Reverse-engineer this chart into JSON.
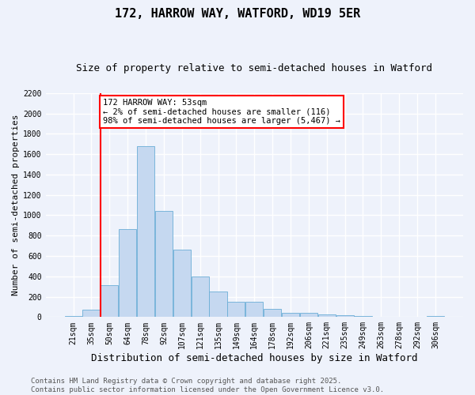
{
  "title": "172, HARROW WAY, WATFORD, WD19 5ER",
  "subtitle": "Size of property relative to semi-detached houses in Watford",
  "xlabel": "Distribution of semi-detached houses by size in Watford",
  "ylabel": "Number of semi-detached properties",
  "bar_values": [
    10,
    70,
    310,
    860,
    1680,
    1040,
    660,
    400,
    250,
    150,
    150,
    80,
    40,
    40,
    25,
    15,
    8,
    5,
    3,
    0,
    10
  ],
  "bin_labels": [
    "21sqm",
    "35sqm",
    "50sqm",
    "64sqm",
    "78sqm",
    "92sqm",
    "107sqm",
    "121sqm",
    "135sqm",
    "149sqm",
    "164sqm",
    "178sqm",
    "192sqm",
    "206sqm",
    "221sqm",
    "235sqm",
    "249sqm",
    "263sqm",
    "278sqm",
    "292sqm",
    "306sqm"
  ],
  "bar_color": "#c5d8f0",
  "bar_edge_color": "#6baed6",
  "red_line_index": 2,
  "ylim": [
    0,
    2200
  ],
  "yticks": [
    0,
    200,
    400,
    600,
    800,
    1000,
    1200,
    1400,
    1600,
    1800,
    2000,
    2200
  ],
  "annotation_text": "172 HARROW WAY: 53sqm\n← 2% of semi-detached houses are smaller (116)\n98% of semi-detached houses are larger (5,467) →",
  "footer_text": "Contains HM Land Registry data © Crown copyright and database right 2025.\nContains public sector information licensed under the Open Government Licence v3.0.",
  "background_color": "#eef2fb",
  "grid_color": "#ffffff",
  "title_fontsize": 11,
  "subtitle_fontsize": 9,
  "xlabel_fontsize": 9,
  "ylabel_fontsize": 8,
  "tick_fontsize": 7,
  "annot_fontsize": 7.5,
  "footer_fontsize": 6.5
}
